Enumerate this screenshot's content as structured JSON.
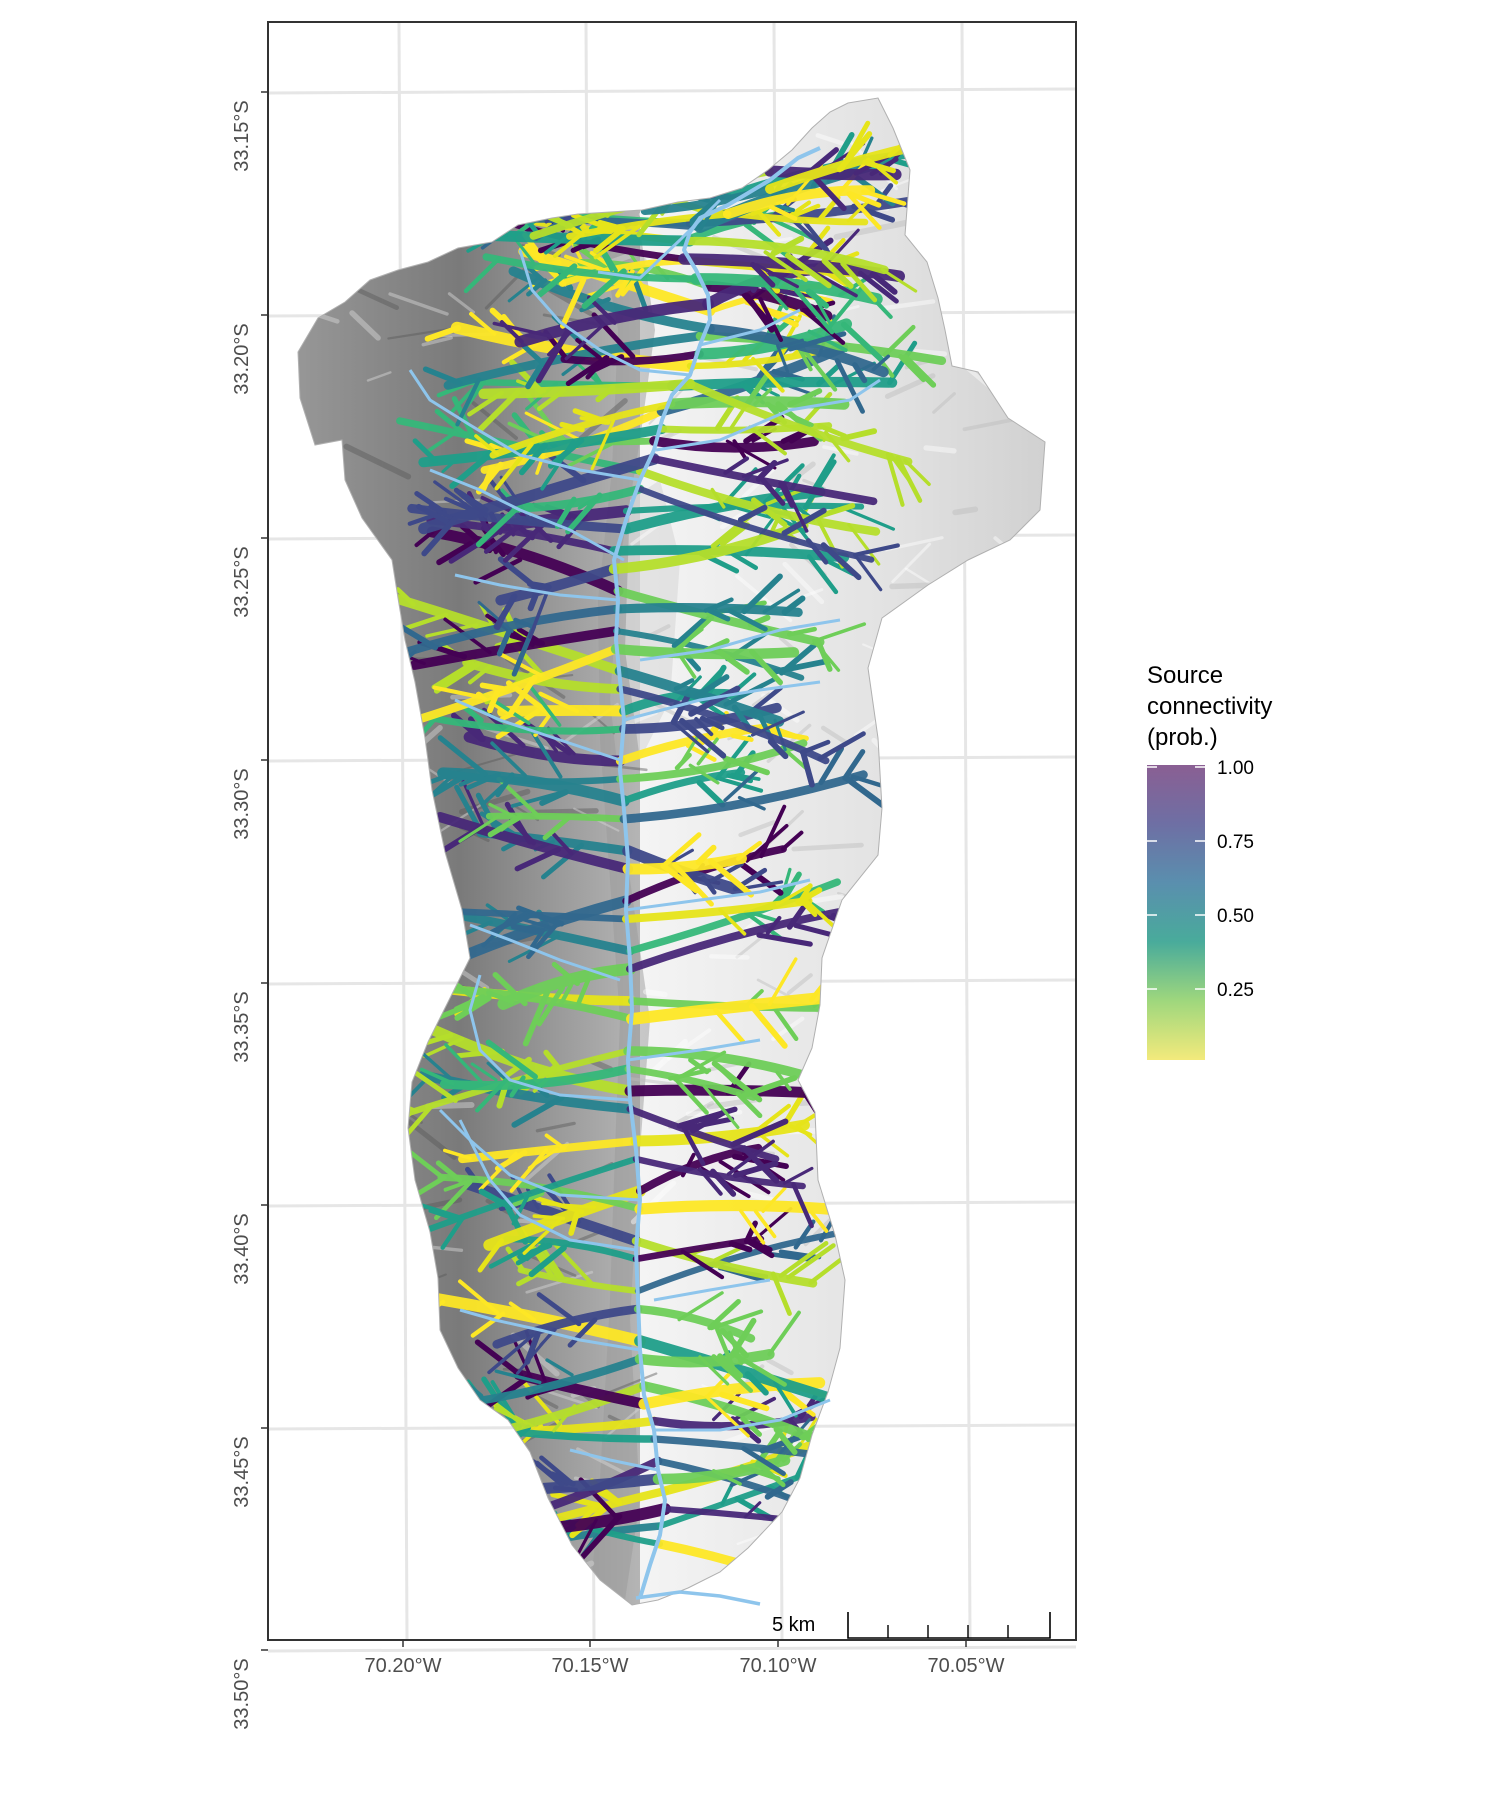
{
  "map": {
    "lon_ticks": [
      {
        "label": "70.20°W"
      },
      {
        "label": "70.15°W"
      },
      {
        "label": "70.10°W"
      },
      {
        "label": "70.05°W"
      }
    ],
    "lat_ticks": [
      {
        "label": "33.15°S"
      },
      {
        "label": "33.20°S"
      },
      {
        "label": "33.25°S"
      },
      {
        "label": "33.30°S"
      },
      {
        "label": "33.35°S"
      },
      {
        "label": "33.40°S"
      },
      {
        "label": "33.45°S"
      },
      {
        "label": "33.50°S"
      }
    ],
    "scale_bar": {
      "label": "5 km"
    },
    "colors": {
      "river": "#8ec5ec",
      "hillshade_dark": "#6f6f6f",
      "hillshade_light": "#f1f1f1",
      "grid": "#e6e6e6",
      "frame": "#333333"
    }
  },
  "legend": {
    "title_line1": "Source",
    "title_line2": "connectivity",
    "title_line3": "(prob.)",
    "ticks": [
      "1.00",
      "0.75",
      "0.50",
      "0.25"
    ],
    "colormap": "viridis"
  }
}
